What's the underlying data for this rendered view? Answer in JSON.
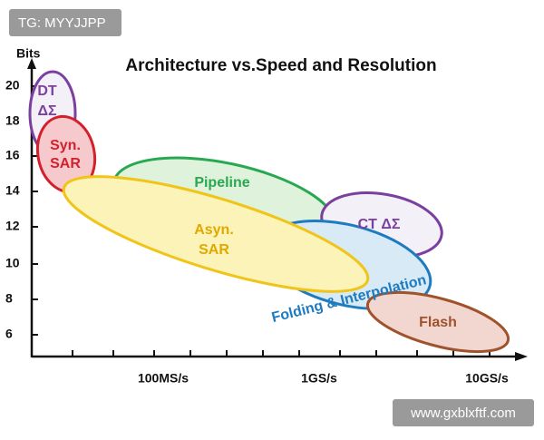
{
  "badge": "TG: MYYJJPP",
  "title": "Architecture vs.Speed and Resolution",
  "y_axis": {
    "label": "Bits",
    "ticks": [
      "20",
      "18",
      "16",
      "14",
      "12",
      "10",
      "8",
      "6"
    ]
  },
  "x_axis": {
    "ticks": [
      "100MS/s",
      "1GS/s",
      "10GS/s"
    ]
  },
  "regions": [
    {
      "lines": [
        "DT",
        "ΔΣ"
      ]
    },
    {
      "lines": [
        "Syn.",
        "SAR"
      ]
    },
    {
      "lines": [
        "Pipeline"
      ]
    },
    {
      "lines": [
        "CT ΔΣ"
      ]
    },
    {
      "lines": [
        "Folding & Interpolation"
      ]
    },
    {
      "lines": [
        "Flash"
      ]
    },
    {
      "lines": [
        "Asyn.",
        "SAR"
      ]
    }
  ],
  "footer": "www.gxblxftf.com"
}
